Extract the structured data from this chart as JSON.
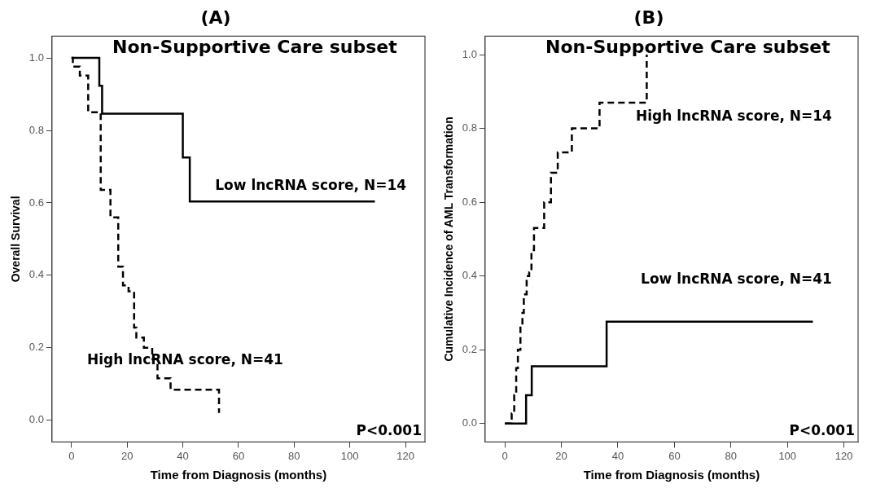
{
  "chart_data": [
    {
      "type": "step",
      "title": "(A)",
      "subtitle": "Non-Supportive Care subset",
      "xlabel": "Time from Diagnosis (months)",
      "ylabel": "Overall Survival",
      "xlim": [
        -7,
        127
      ],
      "ylim": [
        -0.06,
        1.06
      ],
      "xticks": [
        0,
        20,
        40,
        60,
        80,
        100,
        120
      ],
      "yticks": [
        {
          "value": 0,
          "label": "0.0"
        },
        {
          "value": 0.2,
          "label": "0.2"
        },
        {
          "value": 0.4,
          "label": "0.4"
        },
        {
          "value": 0.6,
          "label": "0.6"
        },
        {
          "value": 0.8,
          "label": "0.8"
        },
        {
          "value": 1,
          "label": "1.0"
        }
      ],
      "grid": false,
      "legend": false,
      "marker": "none",
      "annotations": [
        "P<0.001"
      ],
      "series": [
        {
          "name": "Low lncRNA score, N=14",
          "color": "#000000",
          "line_style": "solid",
          "x": [
            0,
            10,
            11,
            40,
            42.5,
            109
          ],
          "values": [
            1,
            0.923,
            0.846,
            0.725,
            0.604,
            0.604
          ]
        },
        {
          "name": "High lncRNA score, N=41",
          "color": "#000000",
          "line_style": "dashed",
          "x": [
            0,
            0.5,
            3,
            6,
            10.5,
            14,
            16.8,
            18.5,
            20.5,
            22.5,
            23.3,
            26,
            29,
            30.9,
            35.6,
            53
          ],
          "values": [
            1,
            0.976,
            0.951,
            0.85,
            0.636,
            0.56,
            0.424,
            0.372,
            0.356,
            0.256,
            0.228,
            0.2,
            0.17,
            0.116,
            0.084,
            0.02
          ]
        }
      ]
    },
    {
      "type": "step",
      "title": "(B)",
      "subtitle": "Non-Supportive Care subset",
      "xlabel": "Time from Diagnosis (months)",
      "ylabel": "Cumulative Incidence of AML Transformation",
      "xlim": [
        -7,
        125
      ],
      "ylim": [
        -0.05,
        1.05
      ],
      "xticks": [
        0,
        20,
        40,
        60,
        80,
        100,
        120
      ],
      "yticks": [
        {
          "value": 0,
          "label": "0.0"
        },
        {
          "value": 0.2,
          "label": "0.2"
        },
        {
          "value": 0.4,
          "label": "0.4"
        },
        {
          "value": 0.6,
          "label": "0.6"
        },
        {
          "value": 0.8,
          "label": "0.8"
        },
        {
          "value": 1,
          "label": "1.0"
        }
      ],
      "grid": false,
      "legend": false,
      "marker": "none",
      "annotations": [
        "P<0.001"
      ],
      "series": [
        {
          "name": "High lncRNA score, N=14",
          "color": "#000000",
          "line_style": "dashed",
          "x": [
            0,
            2.4,
            3.3,
            4,
            4.6,
            5.5,
            6.2,
            6.7,
            7.7,
            8.6,
            9.4,
            10.3,
            13.9,
            16.3,
            18.7,
            23.7,
            33.5,
            50.2
          ],
          "values": [
            0,
            0.027,
            0.077,
            0.15,
            0.2,
            0.26,
            0.3,
            0.35,
            0.4,
            0.41,
            0.47,
            0.53,
            0.6,
            0.68,
            0.735,
            0.8,
            0.87,
            1
          ]
        },
        {
          "name": "Low lncRNA score, N=41",
          "color": "#000000",
          "line_style": "solid",
          "x": [
            0,
            7.5,
            9.5,
            36,
            109
          ],
          "values": [
            0,
            0.077,
            0.155,
            0.276,
            0.276
          ]
        }
      ]
    }
  ]
}
